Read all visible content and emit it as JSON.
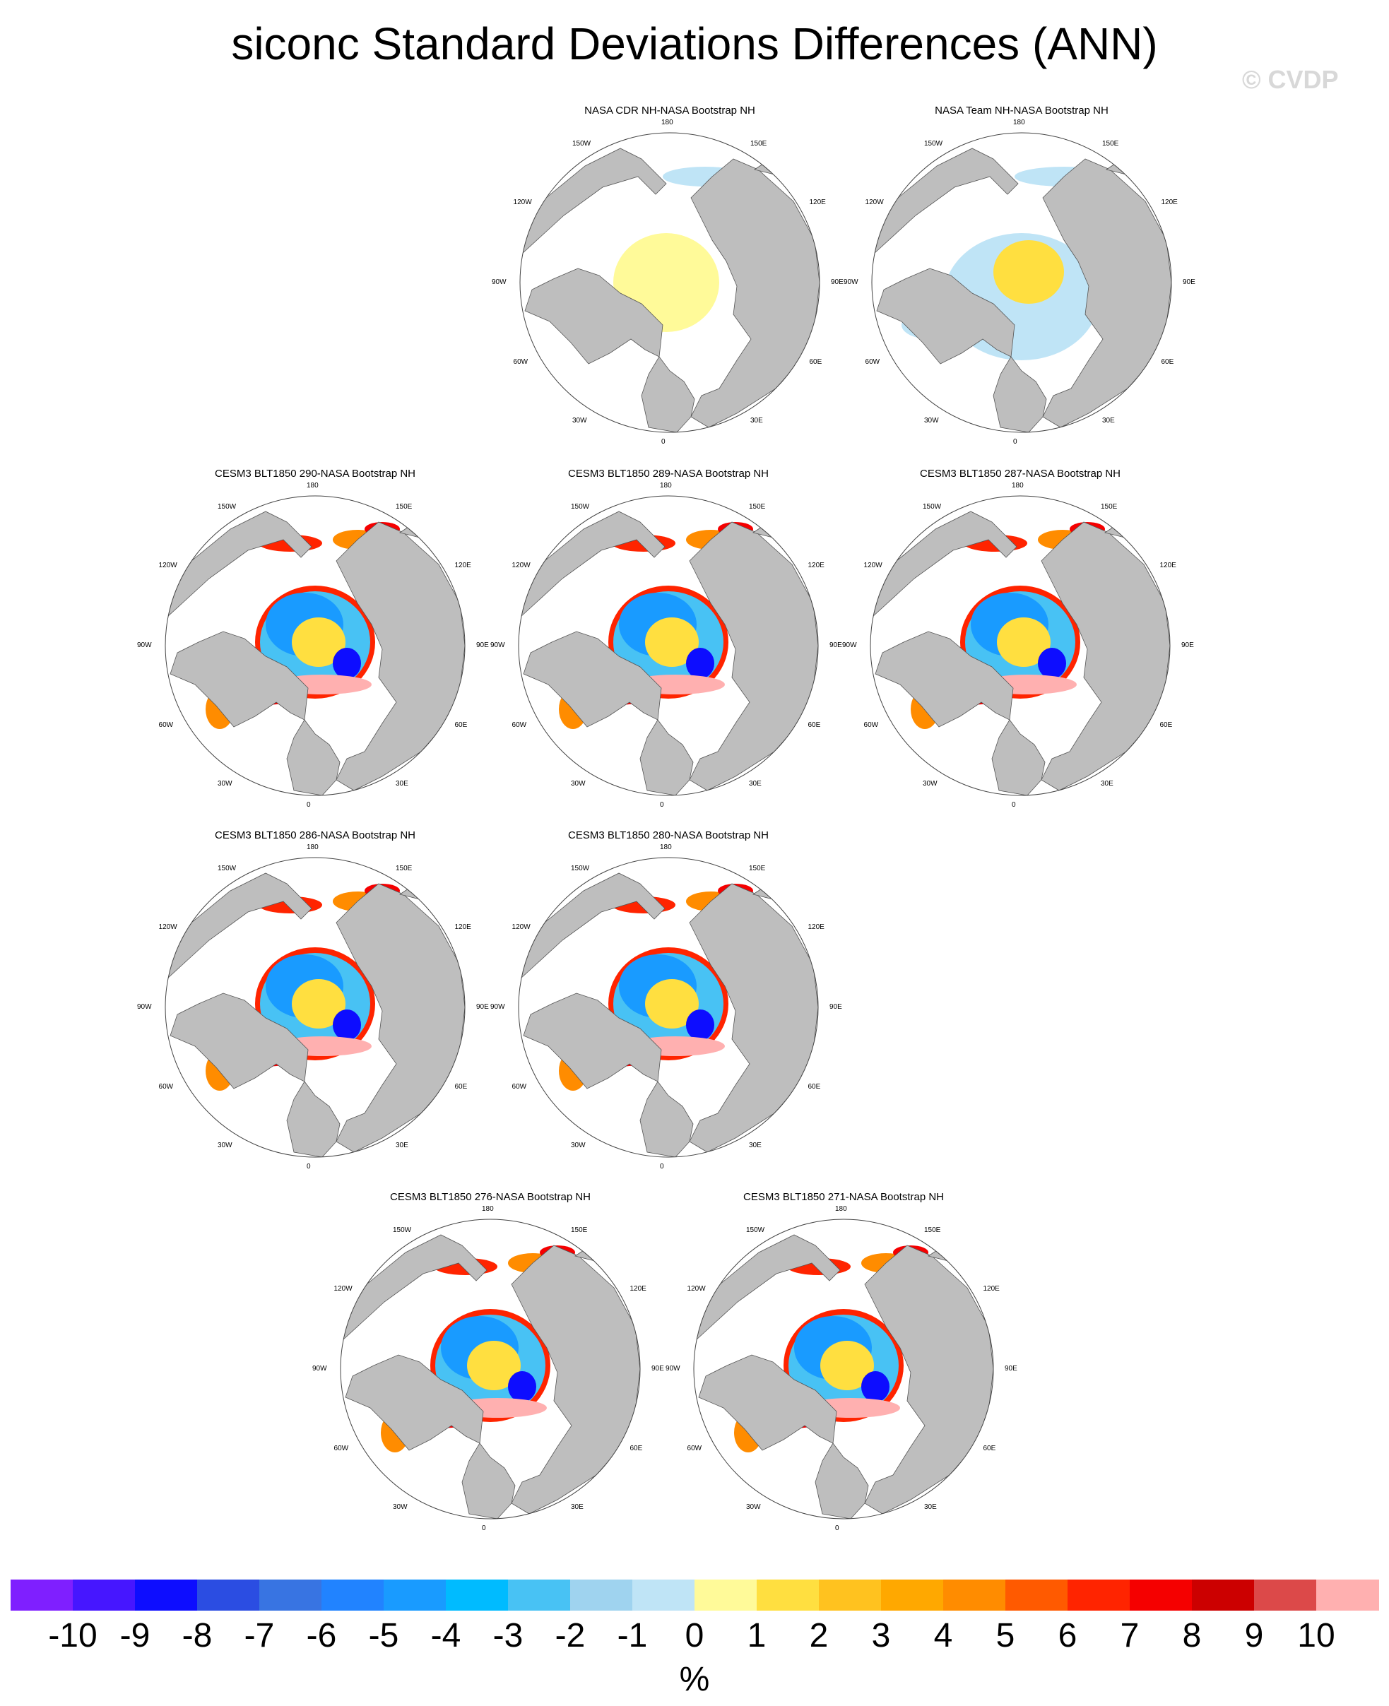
{
  "title": "siconc Standard Deviations Differences (ANN)",
  "watermark": "© CVDP",
  "lon_labels": [
    "180",
    "150E",
    "120E",
    "90E",
    "60E",
    "30E",
    "0",
    "30W",
    "60W",
    "90W",
    "120W",
    "150W"
  ],
  "panels": [
    {
      "title": "NASA CDR NH-NASA Bootstrap NH",
      "style": "obs-a"
    },
    {
      "title": "NASA Team NH-NASA Bootstrap NH",
      "style": "obs-b"
    },
    {
      "title": "CESM3 BLT1850 290-NASA Bootstrap NH",
      "style": "model"
    },
    {
      "title": "CESM3 BLT1850 289-NASA Bootstrap NH",
      "style": "model"
    },
    {
      "title": "CESM3 BLT1850 287-NASA Bootstrap NH",
      "style": "model"
    },
    {
      "title": "CESM3 BLT1850 286-NASA Bootstrap NH",
      "style": "model"
    },
    {
      "title": "CESM3 BLT1850 280-NASA Bootstrap NH",
      "style": "model"
    },
    {
      "title": "CESM3 BLT1850 276-NASA Bootstrap NH",
      "style": "model"
    },
    {
      "title": "CESM3 BLT1850 271-NASA Bootstrap NH",
      "style": "model"
    }
  ],
  "colors": {
    "land": "#bebebe",
    "coast": "#555555",
    "ocean": "#ffffff"
  },
  "colorbar": {
    "colors": [
      "#7f1fff",
      "#4616ff",
      "#0d0dff",
      "#2b4de2",
      "#3874e2",
      "#2183ff",
      "#199bff",
      "#00bbff",
      "#48c2f4",
      "#9fd3ef",
      "#bfe4f6",
      "#fffa99",
      "#ffdf40",
      "#ffc21f",
      "#ffa800",
      "#ff8c00",
      "#ff5a00",
      "#ff2400",
      "#f50000",
      "#cc0000",
      "#dc4949",
      "#ffb0b0"
    ],
    "ticks": [
      "-10",
      "-9",
      "-8",
      "-7",
      "-6",
      "-5",
      "-4",
      "-3",
      "-2",
      "-1",
      "0",
      "1",
      "2",
      "3",
      "4",
      "5",
      "6",
      "7",
      "8",
      "9",
      "10"
    ],
    "units": "%"
  }
}
